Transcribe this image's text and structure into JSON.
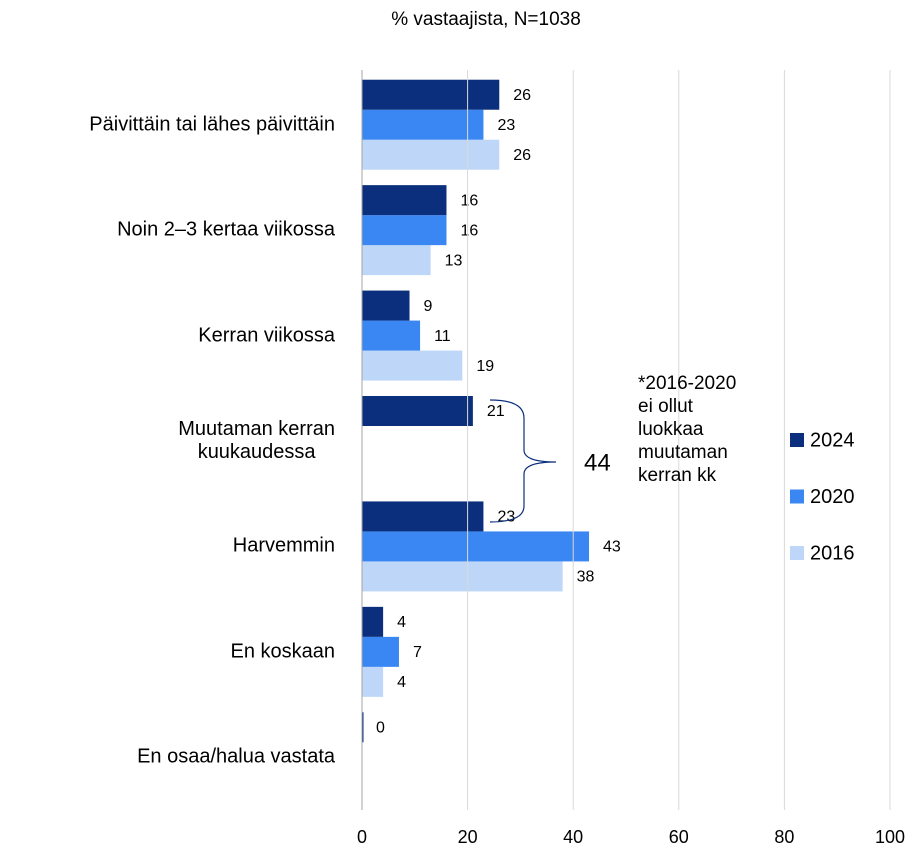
{
  "chart_data": {
    "type": "bar",
    "orientation": "horizontal",
    "title": "% vastaajista, N=1038",
    "categories": [
      "Päivittäin tai lähes päivittäin",
      "Noin 2–3 kertaa viikossa",
      "Kerran viikossa",
      "Muutaman kerran\nkuukaudessa",
      "Harvemmin",
      "En koskaan",
      "En osaa/halua vastata"
    ],
    "series": [
      {
        "name": "2024",
        "color": "#0b2f7c",
        "values": [
          26,
          16,
          9,
          21,
          23,
          4,
          0
        ]
      },
      {
        "name": "2020",
        "color": "#3a86f2",
        "values": [
          23,
          16,
          11,
          null,
          43,
          7,
          null
        ]
      },
      {
        "name": "2016",
        "color": "#bed7f8",
        "values": [
          26,
          13,
          19,
          null,
          38,
          4,
          null
        ]
      }
    ],
    "xlim": [
      0,
      100
    ],
    "xticks": [
      0,
      20,
      40,
      60,
      80,
      100
    ],
    "grid": true,
    "legend": "right",
    "annotations": [
      "44",
      "*2016-2020\nei ollut\nluokkaa\nmuutaman\nkerran kk"
    ]
  }
}
